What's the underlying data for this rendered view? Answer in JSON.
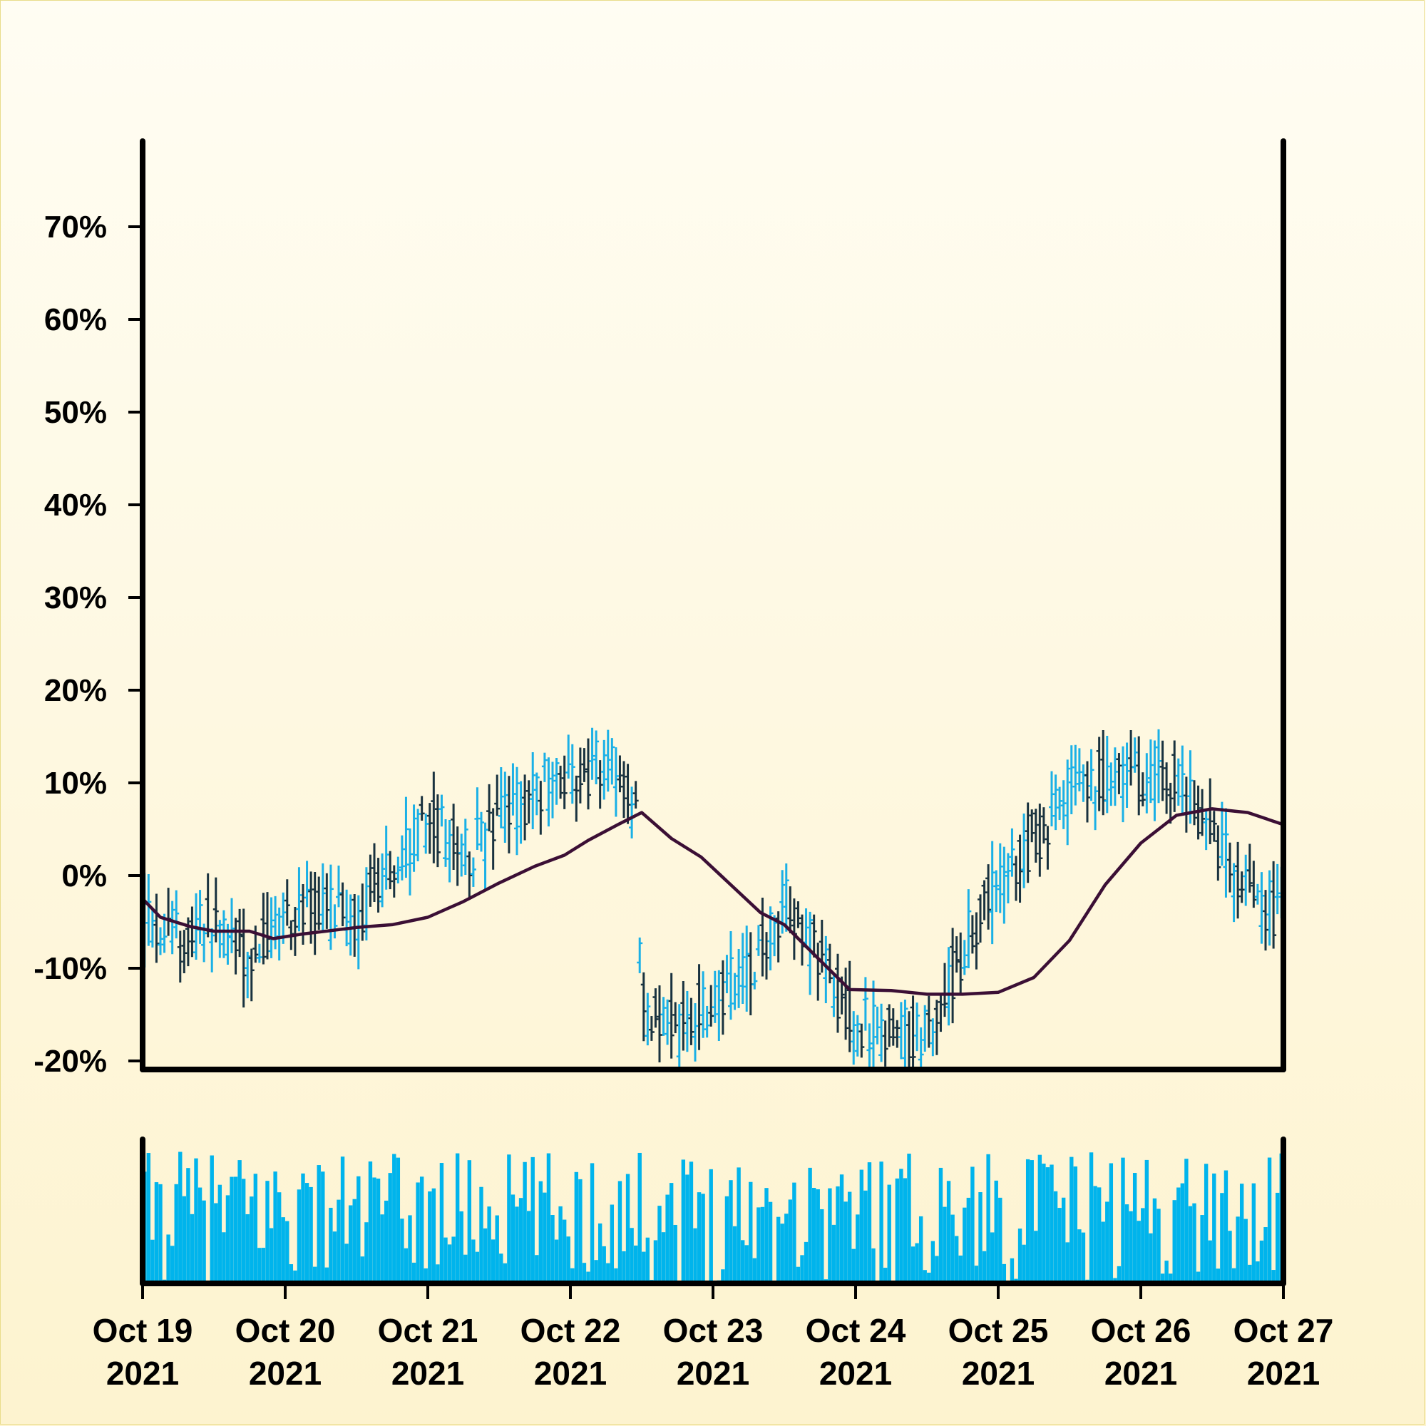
{
  "chart_data": {
    "type": "ohlc",
    "title": "",
    "xlabel": "",
    "ylabel": "",
    "ylim": [
      -20,
      78
    ],
    "y_ticks": [
      {
        "value": 70,
        "label": "70%"
      },
      {
        "value": 60,
        "label": "60%"
      },
      {
        "value": 50,
        "label": "50%"
      },
      {
        "value": 40,
        "label": "40%"
      },
      {
        "value": 30,
        "label": "30%"
      },
      {
        "value": 20,
        "label": "20%"
      },
      {
        "value": 10,
        "label": "10%"
      },
      {
        "value": 0,
        "label": "0%"
      },
      {
        "value": -10,
        "label": "-10%"
      },
      {
        "value": -20,
        "label": "-20%"
      }
    ],
    "x_ticks": [
      {
        "date": "2021-10-19",
        "line1": "Oct 19",
        "line2": "2021"
      },
      {
        "date": "2021-10-20",
        "line1": "Oct 20",
        "line2": "2021"
      },
      {
        "date": "2021-10-21",
        "line1": "Oct 21",
        "line2": "2021"
      },
      {
        "date": "2021-10-22",
        "line1": "Oct 22",
        "line2": "2021"
      },
      {
        "date": "2021-10-23",
        "line1": "Oct 23",
        "line2": "2021"
      },
      {
        "date": "2021-10-24",
        "line1": "Oct 24",
        "line2": "2021"
      },
      {
        "date": "2021-10-25",
        "line1": "Oct 25",
        "line2": "2021"
      },
      {
        "date": "2021-10-26",
        "line1": "Oct 26",
        "line2": "2021"
      },
      {
        "date": "2021-10-27",
        "line1": "Oct 27",
        "line2": "2021"
      }
    ],
    "xlim": [
      "2021-10-19",
      "2021-10-27"
    ],
    "price_anchors": [
      [
        "2021-10-19T00:00",
        -4
      ],
      [
        "2021-10-19T06:00",
        -7
      ],
      [
        "2021-10-19T12:00",
        -5
      ],
      [
        "2021-10-19T18:00",
        -9
      ],
      [
        "2021-10-20T00:00",
        -4
      ],
      [
        "2021-10-20T06:00",
        -4
      ],
      [
        "2021-10-20T12:00",
        -5
      ],
      [
        "2021-10-20T18:00",
        1
      ],
      [
        "2021-10-21T00:00",
        6
      ],
      [
        "2021-10-21T06:00",
        2
      ],
      [
        "2021-10-21T12:00",
        6
      ],
      [
        "2021-10-21T18:00",
        9
      ],
      [
        "2021-10-22T00:00",
        11
      ],
      [
        "2021-10-22T06:00",
        12
      ],
      [
        "2021-10-22T11:00",
        7
      ],
      [
        "2021-10-22T12:00",
        -14
      ],
      [
        "2021-10-22T18:00",
        -17
      ],
      [
        "2021-10-23T00:00",
        -13
      ],
      [
        "2021-10-23T06:00",
        -10
      ],
      [
        "2021-10-23T12:00",
        -3
      ],
      [
        "2021-10-23T18:00",
        -9
      ],
      [
        "2021-10-24T00:00",
        -16
      ],
      [
        "2021-10-24T06:00",
        -17
      ],
      [
        "2021-10-24T12:00",
        -17
      ],
      [
        "2021-10-24T18:00",
        -8
      ],
      [
        "2021-10-25T00:00",
        -1
      ],
      [
        "2021-10-25T06:00",
        4
      ],
      [
        "2021-10-25T12:00",
        9
      ],
      [
        "2021-10-25T18:00",
        11
      ],
      [
        "2021-10-26T00:00",
        11
      ],
      [
        "2021-10-26T06:00",
        11
      ],
      [
        "2021-10-26T12:00",
        4
      ],
      [
        "2021-10-26T18:00",
        -2
      ],
      [
        "2021-10-27T00:00",
        -4
      ]
    ],
    "moving_average": [
      [
        "2021-10-19T00:00",
        -2.5
      ],
      [
        "2021-10-19T03:00",
        -4.5
      ],
      [
        "2021-10-19T08:00",
        -5.5
      ],
      [
        "2021-10-19T12:00",
        -6.0
      ],
      [
        "2021-10-19T18:00",
        -6.0
      ],
      [
        "2021-10-19T22:00",
        -6.8
      ],
      [
        "2021-10-20T03:00",
        -6.3
      ],
      [
        "2021-10-20T12:00",
        -5.6
      ],
      [
        "2021-10-20T18:00",
        -5.3
      ],
      [
        "2021-10-21T00:00",
        -4.5
      ],
      [
        "2021-10-21T06:00",
        -2.8
      ],
      [
        "2021-10-21T12:00",
        -0.8
      ],
      [
        "2021-10-21T18:00",
        1.0
      ],
      [
        "2021-10-21T23:00",
        2.2
      ],
      [
        "2021-10-22T03:00",
        3.8
      ],
      [
        "2021-10-22T08:00",
        5.5
      ],
      [
        "2021-10-22T12:00",
        6.8
      ],
      [
        "2021-10-22T17:00",
        4.0
      ],
      [
        "2021-10-22T22:00",
        2.0
      ],
      [
        "2021-10-23T03:00",
        -1.0
      ],
      [
        "2021-10-23T08:00",
        -4.0
      ],
      [
        "2021-10-23T12:00",
        -5.3
      ],
      [
        "2021-10-23T17:00",
        -8.5
      ],
      [
        "2021-10-23T23:00",
        -12.3
      ],
      [
        "2021-10-24T06:00",
        -12.4
      ],
      [
        "2021-10-24T12:00",
        -12.8
      ],
      [
        "2021-10-24T18:00",
        -12.8
      ],
      [
        "2021-10-25T00:00",
        -12.6
      ],
      [
        "2021-10-25T06:00",
        -11.0
      ],
      [
        "2021-10-25T12:00",
        -7.0
      ],
      [
        "2021-10-25T18:00",
        -1.0
      ],
      [
        "2021-10-26T00:00",
        3.5
      ],
      [
        "2021-10-26T06:00",
        6.5
      ],
      [
        "2021-10-26T12:00",
        7.2
      ],
      [
        "2021-10-26T18:00",
        6.8
      ],
      [
        "2021-10-27T00:00",
        5.5
      ]
    ],
    "colors": {
      "up": "#1ab0e6",
      "down": "#19323f",
      "volume": "#00b4ec",
      "moving_average": "#3b0f35",
      "axis": "#000000"
    },
    "legend": "none",
    "grid": false
  }
}
